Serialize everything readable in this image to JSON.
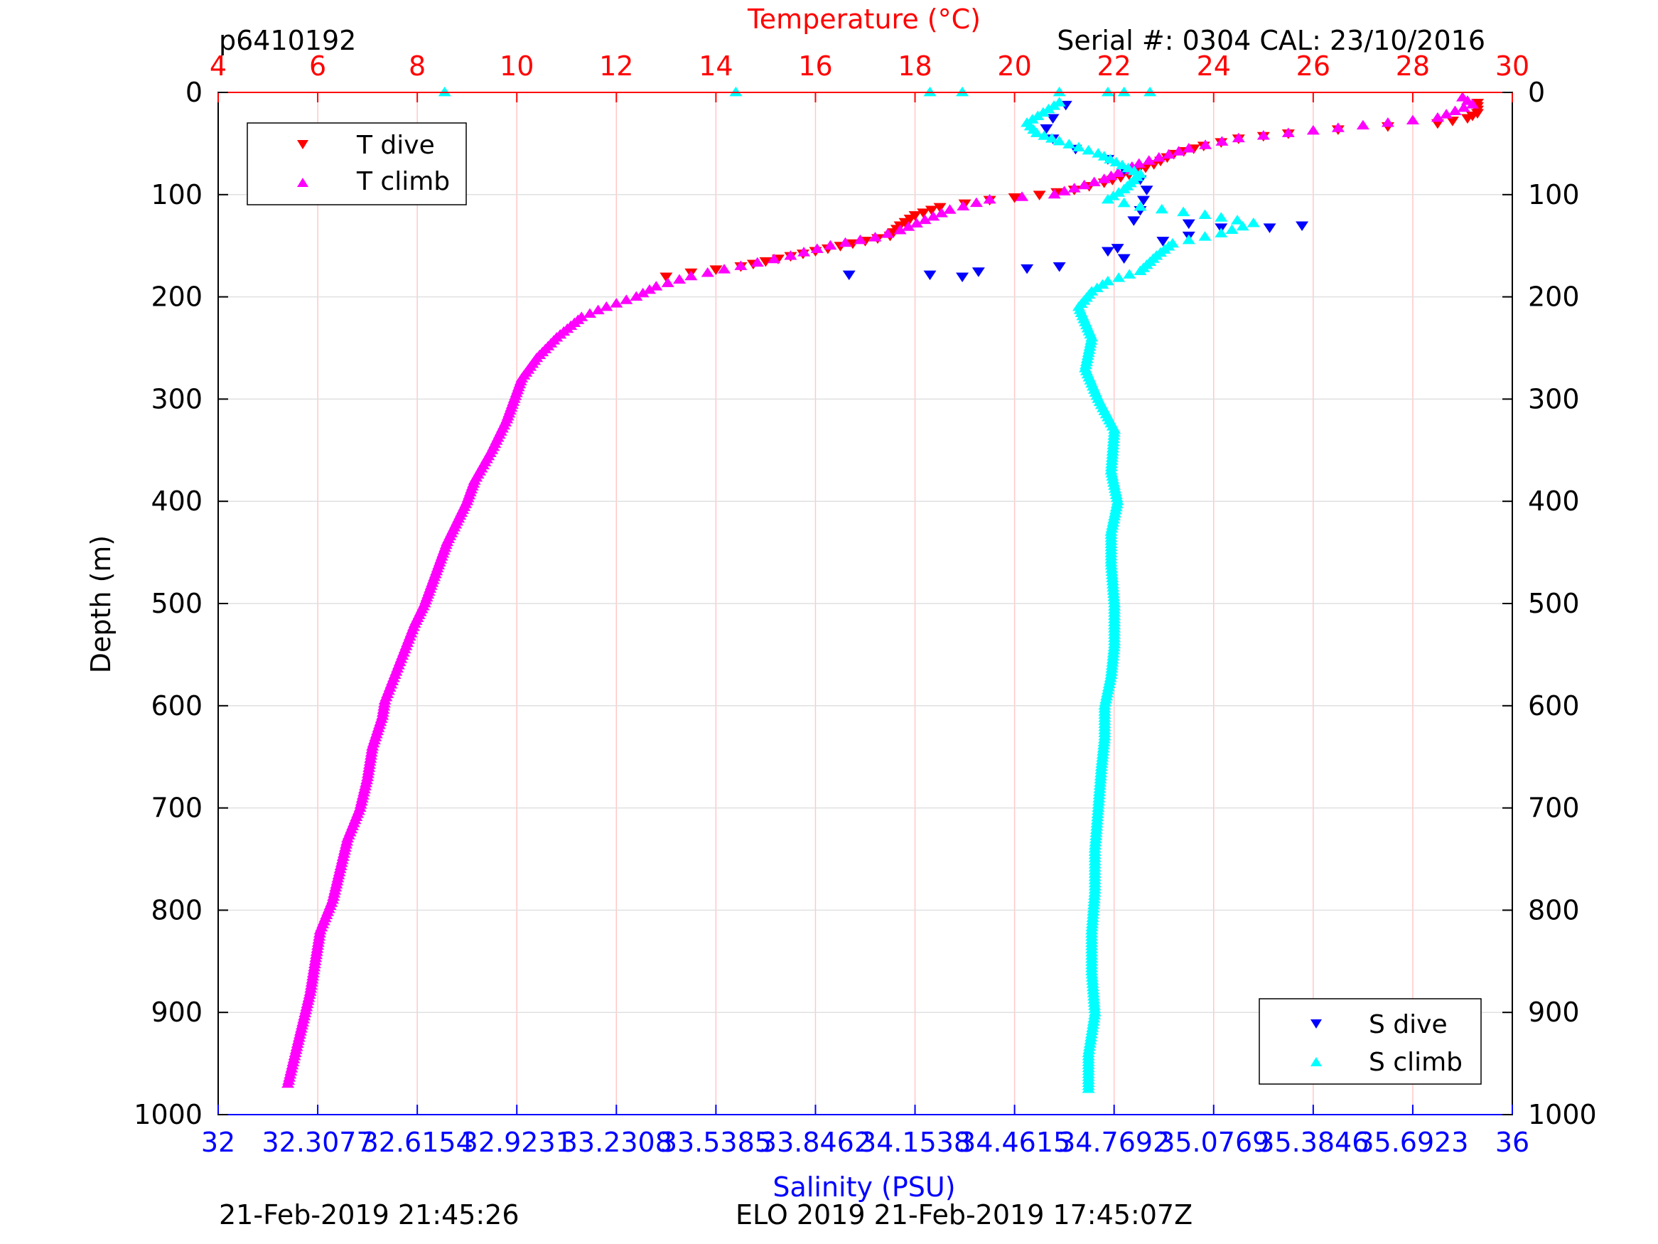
{
  "header": {
    "profile_id": "p6410192",
    "serial": "Serial #: 0304  CAL: 23/10/2016"
  },
  "footer": {
    "left": "21-Feb-2019 21:45:26",
    "right": "ELO 2019 21-Feb-2019 17:45:07Z"
  },
  "colors": {
    "t_dive": "#ff0000",
    "t_climb": "#ff00ff",
    "s_dive": "#0000ff",
    "s_climb": "#00ffff",
    "temp_axis": "#ff0000",
    "sal_axis": "#0000ff",
    "grid_temp": "#ffc8c8",
    "grid_depth": "#e0e0e0"
  },
  "chart_data": {
    "type": "scatter",
    "ylabel": "Depth (m)",
    "ylim": [
      0,
      1000
    ],
    "y_reversed": true,
    "y_ticks": [
      "0",
      "100",
      "200",
      "300",
      "400",
      "500",
      "600",
      "700",
      "800",
      "900",
      "1000"
    ],
    "temperature_axis": {
      "label": "Temperature (°C)",
      "range": [
        4,
        30
      ],
      "ticks": [
        "4",
        "6",
        "8",
        "10",
        "12",
        "14",
        "16",
        "18",
        "20",
        "22",
        "24",
        "26",
        "28",
        "30"
      ]
    },
    "salinity_axis": {
      "label": "Salinity (PSU)",
      "range": [
        32,
        36
      ],
      "ticks": [
        "32",
        "32.3077",
        "32.6154",
        "32.9231",
        "33.2308",
        "33.5385",
        "33.8462",
        "34.1538",
        "34.4615",
        "34.7692",
        "35.0769",
        "35.3846",
        "35.6923",
        "36"
      ]
    },
    "legends": [
      {
        "position": "top-left",
        "entries": [
          "T dive",
          "T climb"
        ]
      },
      {
        "position": "bottom-right",
        "entries": [
          "S dive",
          "S climb"
        ]
      }
    ],
    "series": [
      {
        "name": "T dive",
        "marker": "triangle-down",
        "points": [
          [
            29.3,
            10
          ],
          [
            29.3,
            20
          ],
          [
            29.1,
            25
          ],
          [
            28.5,
            30
          ],
          [
            27.5,
            33
          ],
          [
            26.5,
            36
          ],
          [
            25.5,
            40
          ],
          [
            24.5,
            45
          ],
          [
            23.8,
            52
          ],
          [
            23.2,
            60
          ],
          [
            22.8,
            70
          ],
          [
            22.3,
            80
          ],
          [
            21.8,
            88
          ],
          [
            21.2,
            95
          ],
          [
            20.5,
            100
          ],
          [
            19.5,
            105
          ],
          [
            18.5,
            112
          ],
          [
            18.0,
            120
          ],
          [
            17.7,
            130
          ],
          [
            17.5,
            140
          ],
          [
            17.0,
            145
          ],
          [
            16.5,
            150
          ],
          [
            16.0,
            155
          ],
          [
            15.5,
            160
          ],
          [
            15.0,
            165
          ],
          [
            14.5,
            170
          ],
          [
            14.0,
            173
          ],
          [
            13.5,
            176
          ],
          [
            13.0,
            180
          ]
        ]
      },
      {
        "name": "T climb",
        "marker": "triangle-up",
        "points": [
          [
            29.0,
            5
          ],
          [
            29.2,
            12
          ],
          [
            28.5,
            25
          ],
          [
            27.5,
            30
          ],
          [
            26.5,
            35
          ],
          [
            25.5,
            40
          ],
          [
            24.5,
            45
          ],
          [
            23.5,
            55
          ],
          [
            22.5,
            70
          ],
          [
            21.8,
            85
          ],
          [
            20.8,
            100
          ],
          [
            19.5,
            105
          ],
          [
            18.7,
            115
          ],
          [
            18.2,
            125
          ],
          [
            17.7,
            135
          ],
          [
            17.2,
            142
          ],
          [
            16.3,
            150
          ],
          [
            15.5,
            160
          ],
          [
            14.5,
            170
          ],
          [
            13.5,
            180
          ],
          [
            12.8,
            190
          ],
          [
            12.4,
            200
          ],
          [
            11.8,
            210
          ],
          [
            11.3,
            220
          ],
          [
            10.8,
            240
          ],
          [
            10.4,
            260
          ],
          [
            10.1,
            280
          ],
          [
            9.95,
            300
          ],
          [
            9.8,
            320
          ],
          [
            9.5,
            350
          ],
          [
            9.15,
            380
          ],
          [
            9.0,
            400
          ],
          [
            8.8,
            420
          ],
          [
            8.6,
            440
          ],
          [
            8.45,
            460
          ],
          [
            8.3,
            480
          ],
          [
            8.15,
            500
          ],
          [
            7.95,
            520
          ],
          [
            7.75,
            545
          ],
          [
            7.55,
            570
          ],
          [
            7.35,
            595
          ],
          [
            7.3,
            610
          ],
          [
            7.1,
            640
          ],
          [
            7.0,
            670
          ],
          [
            6.85,
            700
          ],
          [
            6.6,
            730
          ],
          [
            6.45,
            760
          ],
          [
            6.3,
            790
          ],
          [
            6.05,
            820
          ],
          [
            5.95,
            850
          ],
          [
            5.85,
            880
          ],
          [
            5.7,
            910
          ],
          [
            5.55,
            940
          ],
          [
            5.4,
            970
          ]
        ]
      },
      {
        "name": "S dive",
        "marker": "triangle-down",
        "points": [
          [
            34.62,
            12
          ],
          [
            34.58,
            25
          ],
          [
            34.56,
            35
          ],
          [
            34.58,
            45
          ],
          [
            34.65,
            55
          ],
          [
            34.75,
            65
          ],
          [
            34.8,
            75
          ],
          [
            34.85,
            85
          ],
          [
            34.87,
            95
          ],
          [
            34.86,
            105
          ],
          [
            34.85,
            115
          ],
          [
            34.83,
            125
          ],
          [
            35.0,
            128
          ],
          [
            35.1,
            132
          ],
          [
            35.35,
            130
          ],
          [
            35.25,
            132
          ],
          [
            35.0,
            140
          ],
          [
            34.92,
            145
          ],
          [
            34.78,
            152
          ],
          [
            34.75,
            155
          ],
          [
            34.8,
            162
          ],
          [
            34.6,
            170
          ],
          [
            34.5,
            172
          ],
          [
            34.35,
            175
          ],
          [
            34.3,
            180
          ],
          [
            34.2,
            178
          ],
          [
            33.95,
            178
          ]
        ]
      },
      {
        "name": "S climb",
        "marker": "triangle-up",
        "points": [
          [
            32.7,
            0
          ],
          [
            33.6,
            0
          ],
          [
            34.2,
            0
          ],
          [
            34.3,
            0
          ],
          [
            34.6,
            0
          ],
          [
            34.75,
            0
          ],
          [
            34.8,
            0
          ],
          [
            34.88,
            0
          ],
          [
            34.6,
            10
          ],
          [
            34.55,
            20
          ],
          [
            34.5,
            30
          ],
          [
            34.53,
            40
          ],
          [
            34.6,
            48
          ],
          [
            34.72,
            60
          ],
          [
            34.85,
            80
          ],
          [
            34.8,
            95
          ],
          [
            34.75,
            105
          ],
          [
            34.85,
            112
          ],
          [
            35.05,
            120
          ],
          [
            35.2,
            128
          ],
          [
            35.1,
            138
          ],
          [
            34.95,
            148
          ],
          [
            34.9,
            160
          ],
          [
            34.85,
            175
          ],
          [
            34.75,
            185
          ],
          [
            34.7,
            195
          ],
          [
            34.66,
            210
          ],
          [
            34.7,
            240
          ],
          [
            34.68,
            270
          ],
          [
            34.72,
            300
          ],
          [
            34.77,
            330
          ],
          [
            34.76,
            370
          ],
          [
            34.78,
            400
          ],
          [
            34.76,
            430
          ],
          [
            34.76,
            460
          ],
          [
            34.77,
            500
          ],
          [
            34.77,
            540
          ],
          [
            34.76,
            570
          ],
          [
            34.74,
            600
          ],
          [
            34.74,
            630
          ],
          [
            34.73,
            660
          ],
          [
            34.72,
            700
          ],
          [
            34.71,
            740
          ],
          [
            34.71,
            780
          ],
          [
            34.7,
            820
          ],
          [
            34.7,
            860
          ],
          [
            34.71,
            900
          ],
          [
            34.69,
            940
          ],
          [
            34.69,
            975
          ]
        ]
      }
    ]
  }
}
